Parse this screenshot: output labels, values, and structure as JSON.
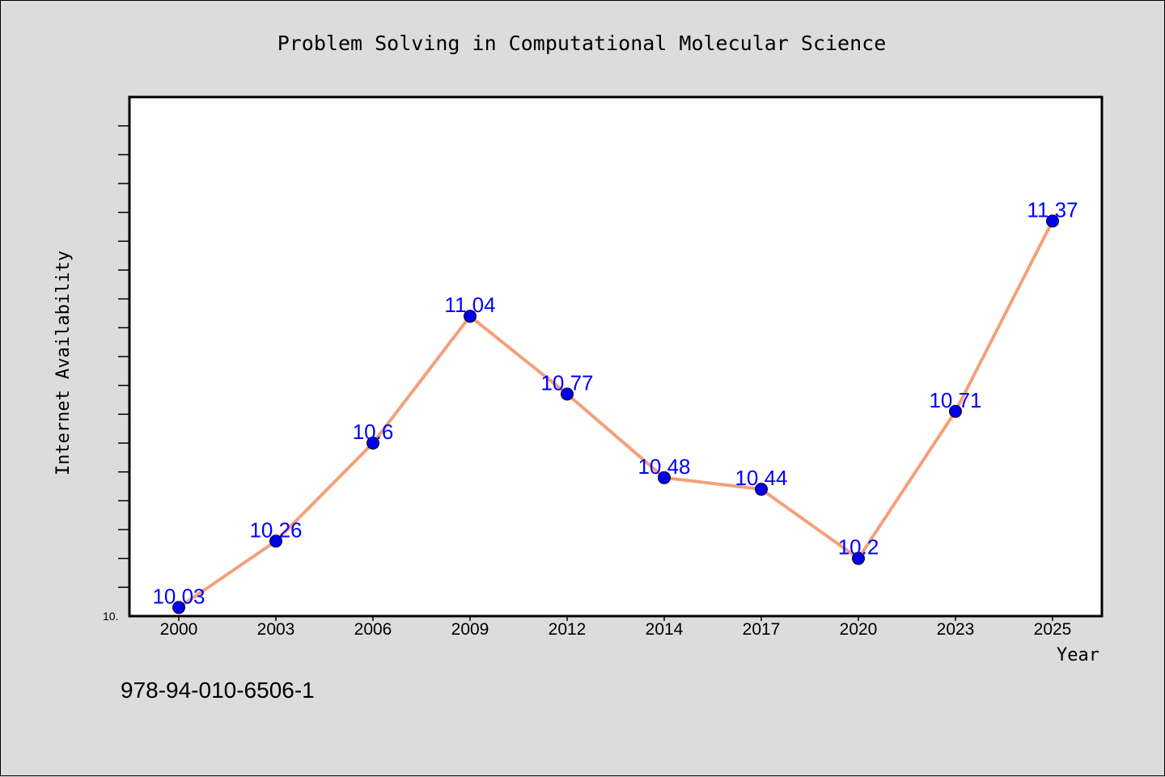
{
  "chart_data": {
    "type": "line",
    "title": "Problem Solving in Computational Molecular Science",
    "xlabel": "Year",
    "ylabel": "Internet Availability",
    "categories": [
      "2000",
      "2003",
      "2006",
      "2009",
      "2012",
      "2014",
      "2017",
      "2020",
      "2023",
      "2025"
    ],
    "series": [
      {
        "values": [
          10.03,
          10.26,
          10.6,
          11.04,
          10.77,
          10.48,
          10.44,
          10.2,
          10.71,
          11.37
        ],
        "labels": [
          "10.03",
          "10.26",
          "10.6",
          "11.04",
          "10.77",
          "10.48",
          "10.44",
          "10.2",
          "10.71",
          "11.37"
        ],
        "line_color": "#f4a07a",
        "marker_color": "#0000ee"
      }
    ],
    "ylim": [
      10.0,
      11.8
    ],
    "y_min_label": "10.",
    "grid": false,
    "legend": "none"
  },
  "footnote": "978-94-010-6506-1",
  "colors": {
    "background": "#dcdcdc",
    "plot_area": "#ffffff",
    "data_label": "#0000ff"
  }
}
